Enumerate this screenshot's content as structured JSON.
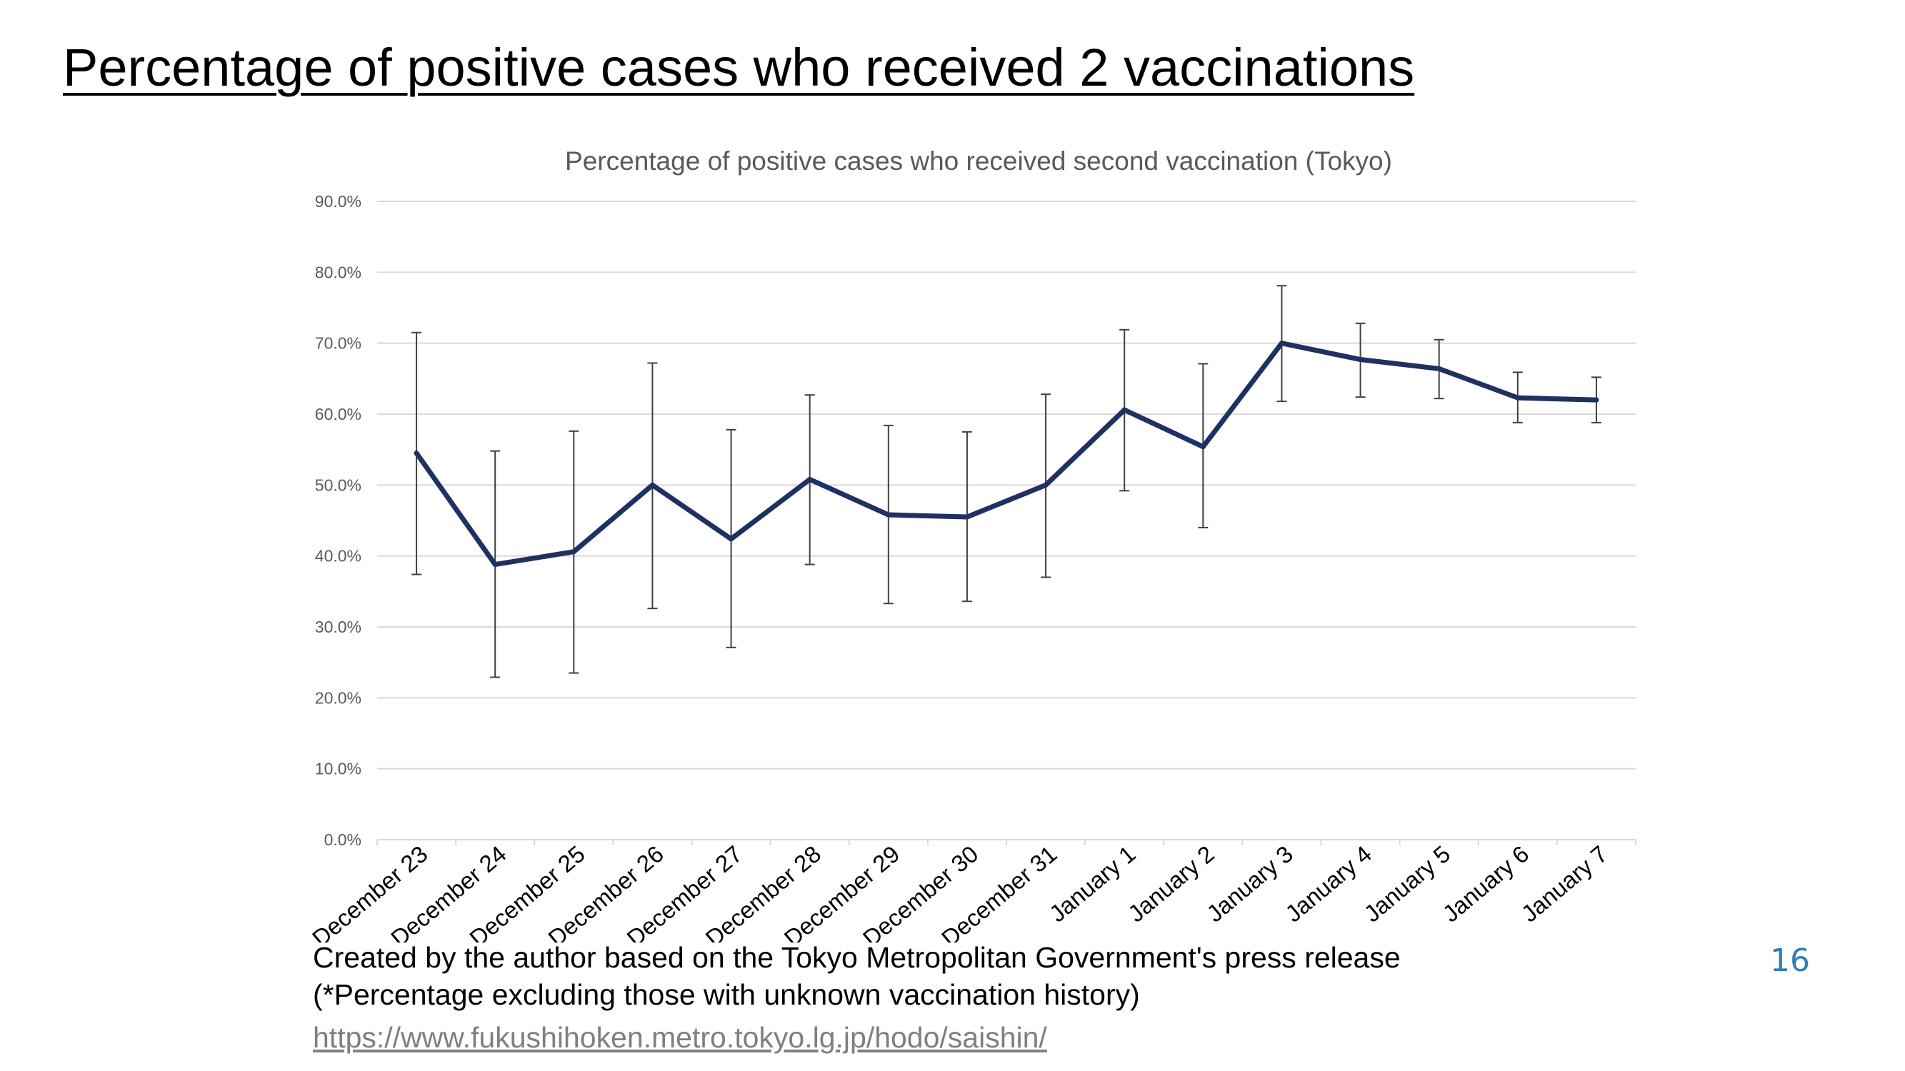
{
  "slide": {
    "title": "Percentage of positive cases who received 2 vaccinations",
    "note_line_1": "Created by the author based on the Tokyo Metropolitan Government's press release",
    "note_line_2": "(*Percentage excluding those with unknown vaccination history)",
    "source_url": "https://www.fukushihoken.metro.tokyo.lg.jp/hodo/saishin/",
    "page_number": "16"
  },
  "colors": {
    "line": "#1f3162",
    "error_bar": "#404040",
    "gridline": "#d9d9d9"
  },
  "chart_data": {
    "type": "line",
    "title": "Percentage of positive cases who received second vaccination (Tokyo)",
    "xlabel": "",
    "ylabel": "",
    "ylim": [
      0,
      90
    ],
    "y_ticks": [
      "0.0%",
      "10.0%",
      "20.0%",
      "30.0%",
      "40.0%",
      "50.0%",
      "60.0%",
      "70.0%",
      "80.0%",
      "90.0%"
    ],
    "grid": true,
    "legend": "none",
    "categories": [
      "December 23",
      "December 24",
      "December 25",
      "December 26",
      "December 27",
      "December 28",
      "December 29",
      "December 30",
      "December 31",
      "January 1",
      "January 2",
      "January 3",
      "January 4",
      "January 5",
      "January 6",
      "January 7"
    ],
    "series": [
      {
        "values": [
          54.5,
          38.8,
          40.6,
          50.0,
          42.4,
          50.8,
          45.8,
          45.5,
          50.0,
          60.6,
          55.4,
          70.0,
          67.7,
          66.4,
          62.3,
          62.0
        ],
        "error_low": [
          37.4,
          22.9,
          23.5,
          32.6,
          27.1,
          38.8,
          33.3,
          33.6,
          37.0,
          49.2,
          44.0,
          61.8,
          62.4,
          62.2,
          58.8,
          58.8
        ],
        "error_high": [
          71.5,
          54.8,
          57.6,
          67.2,
          57.8,
          62.7,
          58.4,
          57.5,
          62.8,
          71.9,
          67.1,
          78.1,
          72.8,
          70.5,
          65.9,
          65.2
        ]
      }
    ]
  }
}
